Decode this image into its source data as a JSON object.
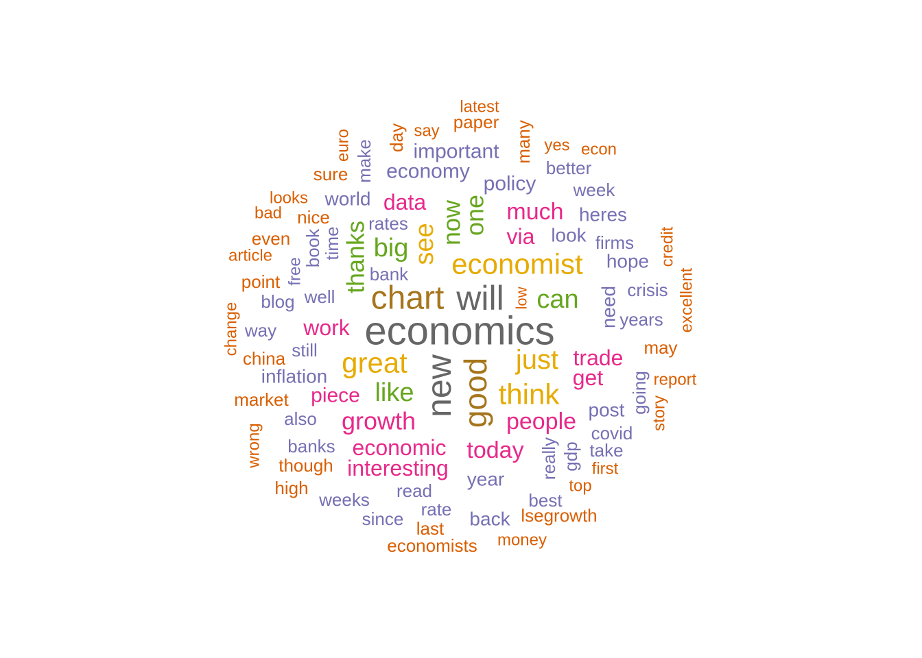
{
  "palette": {
    "orange": "#d95f02",
    "purple": "#7570b3",
    "pink": "#e7298a",
    "green": "#66a61e",
    "yellow": "#e6ab02",
    "brown": "#a6761d",
    "gray": "#666666"
  },
  "words": [
    {
      "text": "economics",
      "color": "gray",
      "weight": 10
    },
    {
      "text": "new",
      "color": "gray",
      "weight": 8
    },
    {
      "text": "will",
      "color": "gray",
      "weight": 7
    },
    {
      "text": "chart",
      "color": "brown",
      "weight": 7
    },
    {
      "text": "good",
      "color": "brown",
      "weight": 7
    },
    {
      "text": "economist",
      "color": "yellow",
      "weight": 6
    },
    {
      "text": "great",
      "color": "yellow",
      "weight": 6
    },
    {
      "text": "think",
      "color": "yellow",
      "weight": 6
    },
    {
      "text": "just",
      "color": "yellow",
      "weight": 6
    },
    {
      "text": "see",
      "color": "yellow",
      "weight": 5
    },
    {
      "text": "can",
      "color": "green",
      "weight": 5
    },
    {
      "text": "like",
      "color": "green",
      "weight": 5
    },
    {
      "text": "big",
      "color": "green",
      "weight": 5
    },
    {
      "text": "thanks",
      "color": "green",
      "weight": 5
    },
    {
      "text": "now",
      "color": "green",
      "weight": 5
    },
    {
      "text": "one",
      "color": "green",
      "weight": 5
    },
    {
      "text": "growth",
      "color": "pink",
      "weight": 5
    },
    {
      "text": "people",
      "color": "pink",
      "weight": 5
    },
    {
      "text": "today",
      "color": "pink",
      "weight": 5
    },
    {
      "text": "interesting",
      "color": "pink",
      "weight": 4
    },
    {
      "text": "economic",
      "color": "pink",
      "weight": 4
    },
    {
      "text": "piece",
      "color": "pink",
      "weight": 4
    },
    {
      "text": "work",
      "color": "pink",
      "weight": 4
    },
    {
      "text": "data",
      "color": "pink",
      "weight": 4
    },
    {
      "text": "much",
      "color": "pink",
      "weight": 4
    },
    {
      "text": "via",
      "color": "pink",
      "weight": 4
    },
    {
      "text": "trade",
      "color": "pink",
      "weight": 4
    },
    {
      "text": "get",
      "color": "pink",
      "weight": 4
    },
    {
      "text": "important",
      "color": "purple",
      "weight": 3
    },
    {
      "text": "economy",
      "color": "purple",
      "weight": 3
    },
    {
      "text": "policy",
      "color": "purple",
      "weight": 3
    },
    {
      "text": "world",
      "color": "purple",
      "weight": 3
    },
    {
      "text": "rates",
      "color": "purple",
      "weight": 2
    },
    {
      "text": "time",
      "color": "purple",
      "weight": 2
    },
    {
      "text": "book",
      "color": "purple",
      "weight": 2
    },
    {
      "text": "free",
      "color": "purple",
      "weight": 2
    },
    {
      "text": "bank",
      "color": "purple",
      "weight": 2
    },
    {
      "text": "well",
      "color": "purple",
      "weight": 2
    },
    {
      "text": "blog",
      "color": "purple",
      "weight": 2
    },
    {
      "text": "way",
      "color": "purple",
      "weight": 2
    },
    {
      "text": "still",
      "color": "purple",
      "weight": 2
    },
    {
      "text": "inflation",
      "color": "purple",
      "weight": 2
    },
    {
      "text": "also",
      "color": "purple",
      "weight": 2
    },
    {
      "text": "banks",
      "color": "purple",
      "weight": 2
    },
    {
      "text": "weeks",
      "color": "purple",
      "weight": 2
    },
    {
      "text": "read",
      "color": "purple",
      "weight": 2
    },
    {
      "text": "rate",
      "color": "purple",
      "weight": 2
    },
    {
      "text": "since",
      "color": "purple",
      "weight": 2
    },
    {
      "text": "year",
      "color": "purple",
      "weight": 2
    },
    {
      "text": "back",
      "color": "purple",
      "weight": 2
    },
    {
      "text": "best",
      "color": "purple",
      "weight": 2
    },
    {
      "text": "really",
      "color": "purple",
      "weight": 2
    },
    {
      "text": "gdp",
      "color": "purple",
      "weight": 2
    },
    {
      "text": "post",
      "color": "purple",
      "weight": 2
    },
    {
      "text": "covid",
      "color": "purple",
      "weight": 2
    },
    {
      "text": "take",
      "color": "purple",
      "weight": 2
    },
    {
      "text": "going",
      "color": "purple",
      "weight": 2
    },
    {
      "text": "need",
      "color": "purple",
      "weight": 2
    },
    {
      "text": "years",
      "color": "purple",
      "weight": 2
    },
    {
      "text": "crisis",
      "color": "purple",
      "weight": 2
    },
    {
      "text": "hope",
      "color": "purple",
      "weight": 2
    },
    {
      "text": "firms",
      "color": "purple",
      "weight": 2
    },
    {
      "text": "look",
      "color": "purple",
      "weight": 2
    },
    {
      "text": "heres",
      "color": "purple",
      "weight": 2
    },
    {
      "text": "week",
      "color": "purple",
      "weight": 2
    },
    {
      "text": "better",
      "color": "purple",
      "weight": 2
    },
    {
      "text": "make",
      "color": "purple",
      "weight": 2
    },
    {
      "text": "low",
      "color": "orange",
      "weight": 1
    },
    {
      "text": "latest",
      "color": "orange",
      "weight": 1
    },
    {
      "text": "paper",
      "color": "orange",
      "weight": 1
    },
    {
      "text": "say",
      "color": "orange",
      "weight": 1
    },
    {
      "text": "day",
      "color": "orange",
      "weight": 1
    },
    {
      "text": "many",
      "color": "orange",
      "weight": 1
    },
    {
      "text": "yes",
      "color": "orange",
      "weight": 1
    },
    {
      "text": "econ",
      "color": "orange",
      "weight": 1
    },
    {
      "text": "euro",
      "color": "orange",
      "weight": 1
    },
    {
      "text": "sure",
      "color": "orange",
      "weight": 1
    },
    {
      "text": "looks",
      "color": "orange",
      "weight": 1
    },
    {
      "text": "bad",
      "color": "orange",
      "weight": 1
    },
    {
      "text": "nice",
      "color": "orange",
      "weight": 1
    },
    {
      "text": "even",
      "color": "orange",
      "weight": 1
    },
    {
      "text": "article",
      "color": "orange",
      "weight": 1
    },
    {
      "text": "point",
      "color": "orange",
      "weight": 1
    },
    {
      "text": "change",
      "color": "orange",
      "weight": 1
    },
    {
      "text": "china",
      "color": "orange",
      "weight": 1
    },
    {
      "text": "market",
      "color": "orange",
      "weight": 1
    },
    {
      "text": "wrong",
      "color": "orange",
      "weight": 1
    },
    {
      "text": "though",
      "color": "orange",
      "weight": 1
    },
    {
      "text": "high",
      "color": "orange",
      "weight": 1
    },
    {
      "text": "last",
      "color": "orange",
      "weight": 1
    },
    {
      "text": "economists",
      "color": "orange",
      "weight": 1
    },
    {
      "text": "money",
      "color": "orange",
      "weight": 1
    },
    {
      "text": "lsegrowth",
      "color": "orange",
      "weight": 1
    },
    {
      "text": "top",
      "color": "orange",
      "weight": 1
    },
    {
      "text": "first",
      "color": "orange",
      "weight": 1
    },
    {
      "text": "story",
      "color": "orange",
      "weight": 1
    },
    {
      "text": "report",
      "color": "orange",
      "weight": 1
    },
    {
      "text": "may",
      "color": "orange",
      "weight": 1
    },
    {
      "text": "excellent",
      "color": "orange",
      "weight": 1
    },
    {
      "text": "credit",
      "color": "orange",
      "weight": 1
    }
  ]
}
